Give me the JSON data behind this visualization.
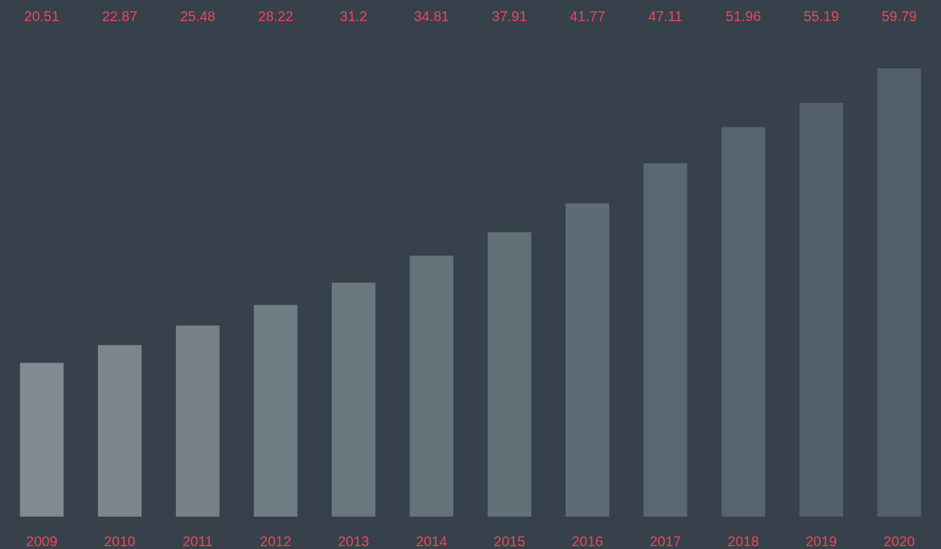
{
  "chart_data": {
    "type": "bar",
    "categories": [
      "2009",
      "2010",
      "2011",
      "2012",
      "2013",
      "2014",
      "2015",
      "2016",
      "2017",
      "2018",
      "2019",
      "2020"
    ],
    "values": [
      20.51,
      22.87,
      25.48,
      28.22,
      31.2,
      34.81,
      37.91,
      41.77,
      47.11,
      51.96,
      55.19,
      59.79
    ],
    "colors": [
      "#7f8a90",
      "#7a868c",
      "#758187",
      "#6f7c83",
      "#6a777f",
      "#66727a",
      "#627078",
      "#5f6b74",
      "#5b6770",
      "#58646d",
      "#55616a",
      "#525e68"
    ],
    "data_labels": true,
    "grid": false,
    "legend": false
  }
}
